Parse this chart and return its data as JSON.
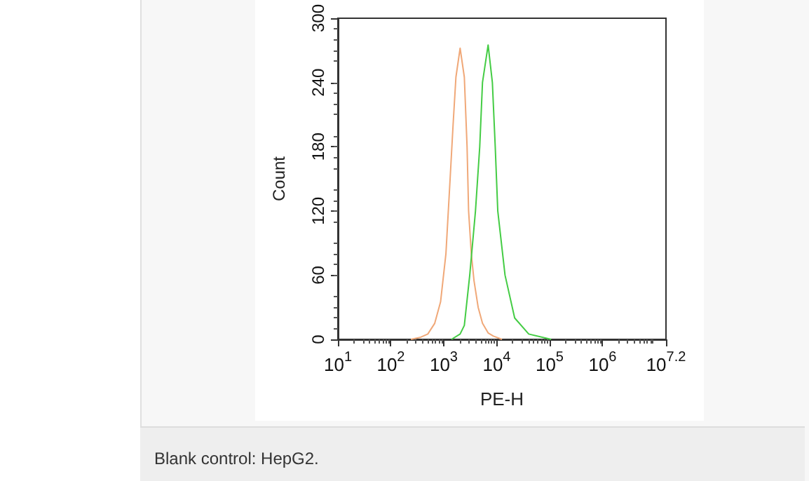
{
  "chart_data": {
    "type": "line",
    "xlabel": "PE-H",
    "ylabel": "Count",
    "log": "x",
    "grid": false,
    "marker": "none",
    "line_style": "solid",
    "xlim": [
      10,
      15848932
    ],
    "ylim": [
      0,
      300
    ],
    "xticks": [
      {
        "value": 10,
        "label": "10$^{1}$"
      },
      {
        "value": 100,
        "label": "10$^{2}$"
      },
      {
        "value": 1000,
        "label": "10$^{3}$"
      },
      {
        "value": 10000,
        "label": "10$^{4}$"
      },
      {
        "value": 100000,
        "label": "10$^{5}$"
      },
      {
        "value": 1000000,
        "label": "10$^{6}$"
      },
      {
        "value": 15848932,
        "label": "10$^{7.2}$"
      }
    ],
    "yticks": [
      0,
      60,
      120,
      180,
      240,
      300
    ],
    "series": [
      {
        "color": "#f0a878",
        "x": [
          240,
          367,
          500,
          676,
          871,
          1100,
          1320,
          1500,
          1700,
          2040,
          2450,
          2760,
          2950,
          3320,
          3730,
          4470,
          5400,
          6900,
          8700,
          12600
        ],
        "values": [
          0,
          2,
          5,
          15,
          35,
          80,
          150,
          200,
          245,
          272,
          245,
          180,
          120,
          80,
          55,
          30,
          15,
          6,
          3,
          0
        ]
      },
      {
        "color": "#44cc44",
        "x": [
          1400,
          2040,
          2450,
          3100,
          3980,
          4790,
          5400,
          6900,
          8300,
          9400,
          10500,
          14400,
          21900,
          40400,
          107000
        ],
        "values": [
          0,
          5,
          13,
          60,
          120,
          180,
          240,
          275,
          240,
          180,
          120,
          60,
          20,
          5,
          0
        ]
      }
    ],
    "annotations": [
      "Blank control: HepG2."
    ]
  }
}
